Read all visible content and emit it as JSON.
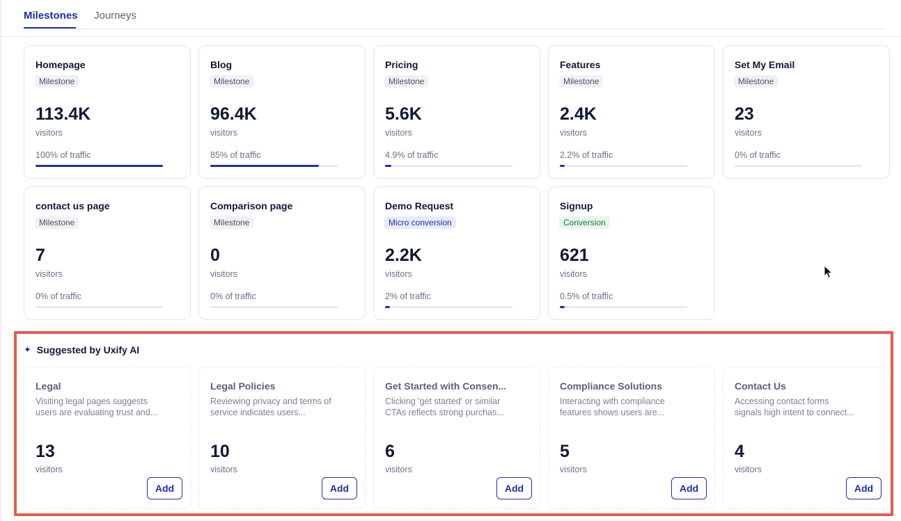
{
  "tabs": [
    {
      "label": "Milestones",
      "active": true
    },
    {
      "label": "Journeys",
      "active": false
    }
  ],
  "milestones": [
    {
      "title": "Homepage",
      "badge": "Milestone",
      "value": "113.4K",
      "unit": "visitors",
      "traffic": "100% of traffic",
      "share": 1.0
    },
    {
      "title": "Blog",
      "badge": "Milestone",
      "value": "96.4K",
      "unit": "visitors",
      "traffic": "85% of traffic",
      "share": 0.85
    },
    {
      "title": "Pricing",
      "badge": "Milestone",
      "value": "5.6K",
      "unit": "visitors",
      "traffic": "4.9% of traffic",
      "share": 0.049
    },
    {
      "title": "Features",
      "badge": "Milestone",
      "value": "2.4K",
      "unit": "visitors",
      "traffic": "2.2% of traffic",
      "share": 0.022
    },
    {
      "title": "Set My Email",
      "badge": "Milestone",
      "value": "23",
      "unit": "visitors",
      "traffic": "0% of traffic",
      "share": 0
    },
    {
      "title": "contact us page",
      "badge": "Milestone",
      "value": "7",
      "unit": "visitors",
      "traffic": "0% of traffic",
      "share": 0
    },
    {
      "title": "Comparison page",
      "badge": "Milestone",
      "value": "0",
      "unit": "visitors",
      "traffic": "0% of traffic",
      "share": 0
    },
    {
      "title": "Demo Request",
      "badge": "Micro conversion",
      "value": "2.2K",
      "unit": "visitors",
      "traffic": "2% of traffic",
      "share": 0.02
    },
    {
      "title": "Signup",
      "badge": "Conversion",
      "value": "621",
      "unit": "visitors",
      "traffic": "0.5% of traffic",
      "share": 0.005
    }
  ],
  "suggestions": {
    "title": "Suggested by Uxify AI",
    "icon": "sparkle-icon",
    "items": [
      {
        "title": "Legal",
        "desc_line1": "Visiting legal pages suggests",
        "desc_line2": "users are evaluating trust and...",
        "value": "13",
        "unit": "visitors",
        "button": "Add"
      },
      {
        "title": "Legal Policies",
        "desc_line1": "Reviewing privacy and terms of",
        "desc_line2": "service indicates users...",
        "value": "10",
        "unit": "visitors",
        "button": "Add"
      },
      {
        "title": "Get Started with Consen...",
        "desc_line1": "Clicking 'get started' or similar",
        "desc_line2": "CTAs reflects strong purchas...",
        "value": "6",
        "unit": "visitors",
        "button": "Add"
      },
      {
        "title": "Compliance Solutions",
        "desc_line1": "Interacting with compliance",
        "desc_line2": "features shows users are...",
        "value": "5",
        "unit": "visitors",
        "button": "Add"
      },
      {
        "title": "Contact Us",
        "desc_line1": "Accessing contact forms",
        "desc_line2": "signals high intent to connect...",
        "value": "4",
        "unit": "visitors",
        "button": "Add"
      }
    ]
  },
  "colors": {
    "accent": "#1e2fa8",
    "highlight_frame": "#e85b4a",
    "conversion_badge": "#1b7a3a"
  }
}
